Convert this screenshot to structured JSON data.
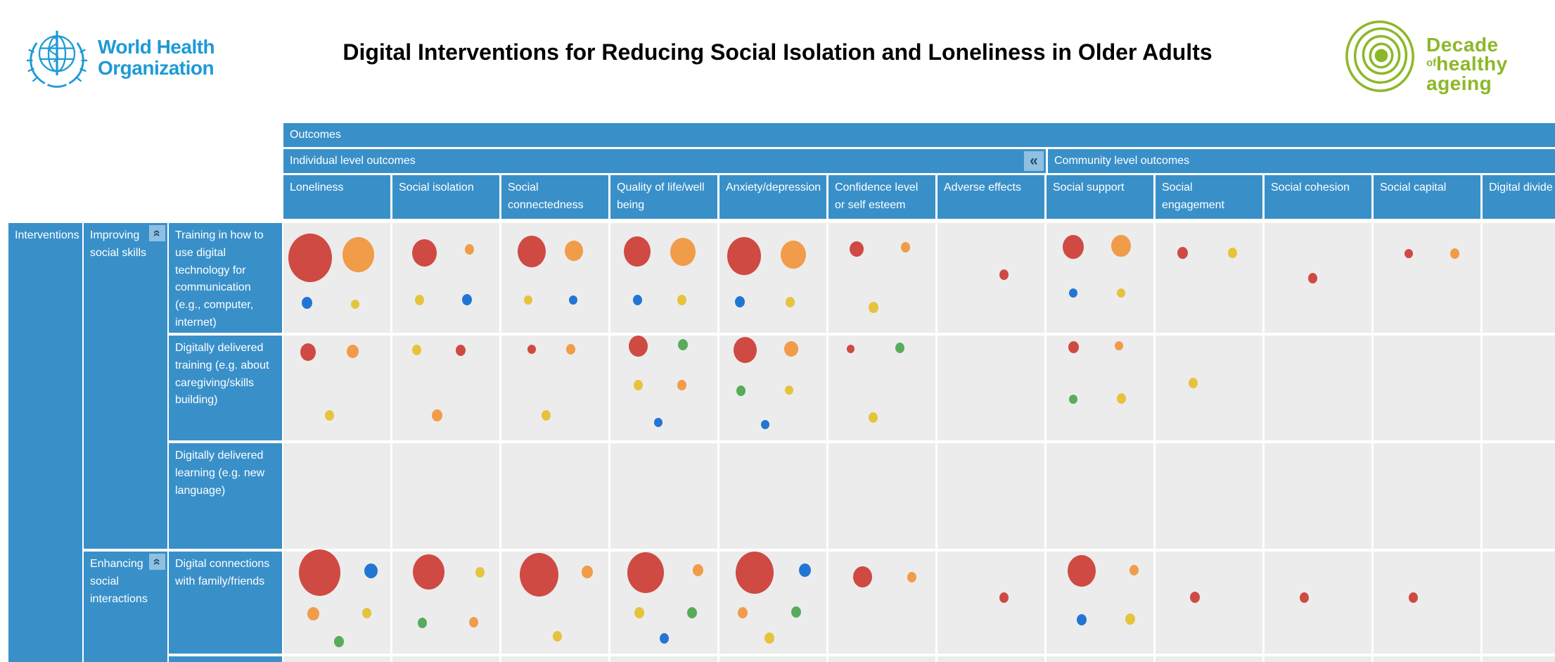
{
  "page": {
    "title": "Digital Interventions for Reducing Social Isolation and Loneliness in Older Adults"
  },
  "branding": {
    "who": {
      "line1": "World Health",
      "line2": "Organization",
      "logo_icon": "who-emblem-globe"
    },
    "decade": {
      "line1": "Decade",
      "line2_small": "of",
      "line2": "healthy",
      "line3": "ageing",
      "logo_icon": "decade-concentric-circles"
    }
  },
  "colors": {
    "red": "#cf4a43",
    "orange": "#f09c49",
    "yellow": "#e6c33c",
    "blue": "#2276d3",
    "green": "#58ab5b",
    "header_blue": "#3990c9",
    "cell_bg": "#ececec",
    "collapse_bg": "#8fc0e1",
    "collapse_fg": "#1d4f74",
    "who_blue": "#1e9ad6",
    "decade_green": "#8cb828",
    "title_color": "#000000"
  },
  "table": {
    "outcomes_label": "Outcomes",
    "interventions_label": "Interventions",
    "collapse_glyph": "«",
    "groups": [
      {
        "label": "Individual level outcomes",
        "collapse_icon": "chevron-double-left-icon"
      },
      {
        "label": "Community level outcomes"
      }
    ],
    "columns": [
      {
        "label": "Loneliness",
        "group": 0
      },
      {
        "label": "Social isolation",
        "group": 0
      },
      {
        "label": "Social connectedness",
        "group": 0
      },
      {
        "label": "Quality of life/well being",
        "group": 0
      },
      {
        "label": "Anxiety/depression",
        "group": 0
      },
      {
        "label": "Confidence level or self esteem",
        "group": 0
      },
      {
        "label": "Adverse effects",
        "group": 0
      },
      {
        "label": "Social support",
        "group": 1
      },
      {
        "label": "Social engagement",
        "group": 1
      },
      {
        "label": "Social cohesion",
        "group": 1
      },
      {
        "label": "Social capital",
        "group": 1
      },
      {
        "label": "Digital divide",
        "group": 1
      }
    ],
    "row_groups": [
      {
        "label": "Improving social skills",
        "rows": [
          0,
          1,
          2
        ],
        "collapse_icon": "chevron-double-up-icon"
      },
      {
        "label": "Enhancing social interactions",
        "rows": [
          3,
          4
        ],
        "collapse_icon": "chevron-double-up-icon"
      }
    ],
    "rows": [
      {
        "label": "Training in how to use digital technology for communication (e.g., computer, internet)"
      },
      {
        "label": "Digitally delivered training (e.g. about caregiving/skills building)"
      },
      {
        "label": "Digitally delivered learning (e.g. new language)"
      },
      {
        "label": "Digital connections with family/friends"
      },
      {
        "label": ""
      }
    ]
  },
  "chart_data": {
    "type": "bubble-matrix",
    "title": "Digital Interventions for Reducing Social Isolation and Loneliness in Older Adults",
    "x_categories": [
      "Loneliness",
      "Social isolation",
      "Social connectedness",
      "Quality of life/well being",
      "Anxiety/depression",
      "Confidence level or self esteem",
      "Adverse effects",
      "Social support",
      "Social engagement",
      "Social cohesion",
      "Social capital",
      "Digital divide"
    ],
    "y_categories": [
      "Training in how to use digital technology for communication (e.g., computer, internet)",
      "Digitally delivered training (e.g. about caregiving/skills building)",
      "Digitally delivered learning (e.g. new language)",
      "Digital connections with family/friends",
      ""
    ],
    "bubble_colors": {
      "red": "#cf4a43",
      "orange": "#f09c49",
      "yellow": "#e6c33c",
      "blue": "#2276d3",
      "green": "#58ab5b"
    },
    "cells": [
      [
        [
          {
            "c": "red",
            "d": 62,
            "x": 25,
            "y": 32
          },
          {
            "c": "orange",
            "d": 45,
            "x": 70,
            "y": 29
          },
          {
            "c": "blue",
            "d": 15,
            "x": 22,
            "y": 73
          },
          {
            "c": "yellow",
            "d": 12,
            "x": 67,
            "y": 74
          }
        ],
        [
          {
            "c": "red",
            "d": 35,
            "x": 30,
            "y": 27
          },
          {
            "c": "orange",
            "d": 13,
            "x": 72,
            "y": 24
          },
          {
            "c": "yellow",
            "d": 13,
            "x": 25,
            "y": 70
          },
          {
            "c": "blue",
            "d": 14,
            "x": 70,
            "y": 70
          }
        ],
        [
          {
            "c": "red",
            "d": 40,
            "x": 28,
            "y": 26
          },
          {
            "c": "orange",
            "d": 26,
            "x": 68,
            "y": 25
          },
          {
            "c": "yellow",
            "d": 12,
            "x": 25,
            "y": 70
          },
          {
            "c": "blue",
            "d": 12,
            "x": 67,
            "y": 70
          }
        ],
        [
          {
            "c": "red",
            "d": 38,
            "x": 25,
            "y": 26
          },
          {
            "c": "orange",
            "d": 36,
            "x": 68,
            "y": 26
          },
          {
            "c": "blue",
            "d": 13,
            "x": 25,
            "y": 70
          },
          {
            "c": "yellow",
            "d": 13,
            "x": 67,
            "y": 70
          }
        ],
        [
          {
            "c": "red",
            "d": 48,
            "x": 23,
            "y": 30
          },
          {
            "c": "orange",
            "d": 36,
            "x": 69,
            "y": 29
          },
          {
            "c": "blue",
            "d": 14,
            "x": 19,
            "y": 72
          },
          {
            "c": "yellow",
            "d": 13,
            "x": 66,
            "y": 72
          }
        ],
        [
          {
            "c": "red",
            "d": 20,
            "x": 26,
            "y": 24
          },
          {
            "c": "orange",
            "d": 13,
            "x": 72,
            "y": 22
          },
          {
            "c": "yellow",
            "d": 14,
            "x": 42,
            "y": 77
          }
        ],
        [
          {
            "c": "red",
            "d": 13,
            "x": 62,
            "y": 47
          }
        ],
        [
          {
            "c": "red",
            "d": 30,
            "x": 25,
            "y": 22
          },
          {
            "c": "orange",
            "d": 28,
            "x": 70,
            "y": 21
          },
          {
            "c": "blue",
            "d": 12,
            "x": 25,
            "y": 64
          },
          {
            "c": "yellow",
            "d": 12,
            "x": 70,
            "y": 64
          }
        ],
        [
          {
            "c": "red",
            "d": 15,
            "x": 25,
            "y": 27
          },
          {
            "c": "yellow",
            "d": 13,
            "x": 72,
            "y": 27
          }
        ],
        [
          {
            "c": "red",
            "d": 13,
            "x": 45,
            "y": 50
          }
        ],
        [
          {
            "c": "red",
            "d": 12,
            "x": 33,
            "y": 28
          },
          {
            "c": "orange",
            "d": 13,
            "x": 76,
            "y": 28
          }
        ],
        []
      ],
      [
        [
          {
            "c": "red",
            "d": 22,
            "x": 23,
            "y": 16
          },
          {
            "c": "orange",
            "d": 17,
            "x": 65,
            "y": 15
          },
          {
            "c": "yellow",
            "d": 13,
            "x": 43,
            "y": 76
          }
        ],
        [
          {
            "c": "yellow",
            "d": 13,
            "x": 23,
            "y": 14
          },
          {
            "c": "red",
            "d": 14,
            "x": 64,
            "y": 14
          },
          {
            "c": "orange",
            "d": 15,
            "x": 42,
            "y": 76
          }
        ],
        [
          {
            "c": "red",
            "d": 12,
            "x": 28,
            "y": 13
          },
          {
            "c": "orange",
            "d": 13,
            "x": 65,
            "y": 13
          },
          {
            "c": "yellow",
            "d": 13,
            "x": 42,
            "y": 76
          }
        ],
        [
          {
            "c": "red",
            "d": 27,
            "x": 26,
            "y": 10
          },
          {
            "c": "green",
            "d": 14,
            "x": 68,
            "y": 9
          },
          {
            "c": "yellow",
            "d": 13,
            "x": 26,
            "y": 47
          },
          {
            "c": "orange",
            "d": 13,
            "x": 67,
            "y": 47
          },
          {
            "c": "blue",
            "d": 12,
            "x": 45,
            "y": 83
          }
        ],
        [
          {
            "c": "red",
            "d": 33,
            "x": 24,
            "y": 14
          },
          {
            "c": "orange",
            "d": 20,
            "x": 67,
            "y": 13
          },
          {
            "c": "green",
            "d": 13,
            "x": 20,
            "y": 53
          },
          {
            "c": "yellow",
            "d": 12,
            "x": 65,
            "y": 52
          },
          {
            "c": "blue",
            "d": 12,
            "x": 43,
            "y": 85
          }
        ],
        [
          {
            "c": "red",
            "d": 11,
            "x": 21,
            "y": 13
          },
          {
            "c": "green",
            "d": 13,
            "x": 67,
            "y": 12
          },
          {
            "c": "yellow",
            "d": 13,
            "x": 42,
            "y": 78
          }
        ],
        [],
        [
          {
            "c": "red",
            "d": 15,
            "x": 25,
            "y": 11
          },
          {
            "c": "orange",
            "d": 12,
            "x": 68,
            "y": 10
          },
          {
            "c": "green",
            "d": 12,
            "x": 25,
            "y": 61
          },
          {
            "c": "yellow",
            "d": 13,
            "x": 70,
            "y": 60
          }
        ],
        [
          {
            "c": "yellow",
            "d": 13,
            "x": 35,
            "y": 45
          }
        ],
        [],
        [],
        []
      ],
      [
        [],
        [],
        [],
        [],
        [],
        [],
        [],
        [],
        [],
        [],
        [],
        []
      ],
      [
        [
          {
            "c": "red",
            "d": 59,
            "x": 34,
            "y": 21
          },
          {
            "c": "blue",
            "d": 19,
            "x": 82,
            "y": 19
          },
          {
            "c": "orange",
            "d": 17,
            "x": 28,
            "y": 61
          },
          {
            "c": "yellow",
            "d": 13,
            "x": 78,
            "y": 60
          },
          {
            "c": "green",
            "d": 14,
            "x": 52,
            "y": 88
          }
        ],
        [
          {
            "c": "red",
            "d": 45,
            "x": 34,
            "y": 20
          },
          {
            "c": "yellow",
            "d": 13,
            "x": 82,
            "y": 20
          },
          {
            "c": "green",
            "d": 13,
            "x": 28,
            "y": 70
          },
          {
            "c": "orange",
            "d": 13,
            "x": 76,
            "y": 69
          }
        ],
        [
          {
            "c": "red",
            "d": 55,
            "x": 35,
            "y": 23
          },
          {
            "c": "orange",
            "d": 16,
            "x": 80,
            "y": 20
          },
          {
            "c": "yellow",
            "d": 13,
            "x": 52,
            "y": 83
          }
        ],
        [
          {
            "c": "red",
            "d": 52,
            "x": 33,
            "y": 21
          },
          {
            "c": "orange",
            "d": 15,
            "x": 82,
            "y": 18
          },
          {
            "c": "yellow",
            "d": 14,
            "x": 27,
            "y": 60
          },
          {
            "c": "green",
            "d": 14,
            "x": 76,
            "y": 60
          },
          {
            "c": "blue",
            "d": 13,
            "x": 50,
            "y": 85
          }
        ],
        [
          {
            "c": "red",
            "d": 54,
            "x": 33,
            "y": 21
          },
          {
            "c": "blue",
            "d": 17,
            "x": 80,
            "y": 18
          },
          {
            "c": "orange",
            "d": 14,
            "x": 22,
            "y": 60
          },
          {
            "c": "green",
            "d": 14,
            "x": 72,
            "y": 59
          },
          {
            "c": "yellow",
            "d": 14,
            "x": 47,
            "y": 85
          }
        ],
        [
          {
            "c": "red",
            "d": 27,
            "x": 32,
            "y": 25
          },
          {
            "c": "orange",
            "d": 13,
            "x": 78,
            "y": 25
          }
        ],
        [
          {
            "c": "red",
            "d": 13,
            "x": 62,
            "y": 45
          }
        ],
        [
          {
            "c": "red",
            "d": 40,
            "x": 33,
            "y": 19
          },
          {
            "c": "orange",
            "d": 13,
            "x": 82,
            "y": 18
          },
          {
            "c": "blue",
            "d": 14,
            "x": 33,
            "y": 67
          },
          {
            "c": "yellow",
            "d": 14,
            "x": 78,
            "y": 66
          }
        ],
        [
          {
            "c": "red",
            "d": 14,
            "x": 37,
            "y": 45
          }
        ],
        [
          {
            "c": "red",
            "d": 13,
            "x": 37,
            "y": 45
          }
        ],
        [
          {
            "c": "red",
            "d": 13,
            "x": 37,
            "y": 45
          }
        ],
        []
      ],
      [
        [],
        [],
        [],
        [],
        [],
        [],
        [],
        [],
        [],
        [],
        [],
        []
      ]
    ]
  }
}
